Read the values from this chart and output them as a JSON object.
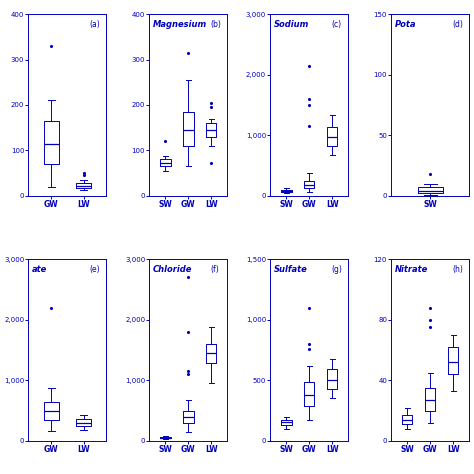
{
  "color": "#0000BB",
  "bgcolor": "#FFFFFF",
  "subplots": [
    {
      "label": "(a)",
      "title": "",
      "ylim": [
        0,
        400
      ],
      "yticks": [
        0,
        100,
        200,
        300,
        400
      ],
      "yticklabels": [
        "0",
        "100",
        "200",
        "300",
        "400"
      ],
      "categories": [
        "GW",
        "LW"
      ],
      "boxes": [
        {
          "med": 115,
          "q1": 70,
          "q3": 165,
          "whislo": 20,
          "whishi": 210,
          "fliers": [
            330
          ]
        },
        {
          "med": 22,
          "q1": 17,
          "q3": 28,
          "whislo": 13,
          "whishi": 35,
          "fliers": [
            45,
            50
          ]
        }
      ],
      "panel": "a",
      "partial_left": true
    },
    {
      "label": "(b)",
      "title": "Magnesium",
      "ylim": [
        0,
        400
      ],
      "yticks": [
        0,
        100,
        200,
        300,
        400
      ],
      "yticklabels": [
        "0",
        "100",
        "200",
        "300",
        "400"
      ],
      "categories": [
        "SW",
        "GW",
        "LW"
      ],
      "boxes": [
        {
          "med": 72,
          "q1": 65,
          "q3": 80,
          "whislo": 55,
          "whishi": 88,
          "fliers": [
            120
          ]
        },
        {
          "med": 145,
          "q1": 110,
          "q3": 185,
          "whislo": 65,
          "whishi": 255,
          "fliers": [
            315
          ]
        },
        {
          "med": 145,
          "q1": 130,
          "q3": 160,
          "whislo": 110,
          "whishi": 170,
          "fliers": [
            195,
            205,
            72
          ]
        }
      ],
      "panel": "b"
    },
    {
      "label": "(c)",
      "title": "Sodium",
      "ylim": [
        0,
        3000
      ],
      "yticks": [
        0,
        1000,
        2000,
        3000
      ],
      "yticklabels": [
        "0",
        "1,000",
        "2,000",
        "3,000"
      ],
      "categories": [
        "SW",
        "GW",
        "LW"
      ],
      "boxes": [
        {
          "med": 80,
          "q1": 60,
          "q3": 100,
          "whislo": 40,
          "whishi": 130,
          "fliers": []
        },
        {
          "med": 185,
          "q1": 120,
          "q3": 250,
          "whislo": 60,
          "whishi": 375,
          "fliers": [
            1150,
            1500,
            1600,
            2150
          ]
        },
        {
          "med": 970,
          "q1": 830,
          "q3": 1130,
          "whislo": 680,
          "whishi": 1340,
          "fliers": []
        }
      ],
      "panel": "c"
    },
    {
      "label": "(d)",
      "title": "Pota",
      "ylim": [
        0,
        150
      ],
      "yticks": [
        0,
        50,
        100,
        150
      ],
      "yticklabels": [
        "0",
        "50",
        "100",
        "150"
      ],
      "categories": [
        "SW"
      ],
      "boxes": [
        {
          "med": 4,
          "q1": 2,
          "q3": 7,
          "whislo": 1,
          "whishi": 10,
          "fliers": [
            18
          ]
        }
      ],
      "panel": "d",
      "partial_right": true
    },
    {
      "label": "(e)",
      "title": "ate",
      "ylim": [
        0,
        3000
      ],
      "yticks": [
        0,
        1000,
        2000,
        3000
      ],
      "yticklabels": [
        "0",
        "1,000",
        "2,000",
        "3,000"
      ],
      "categories": [
        "GW",
        "LW"
      ],
      "boxes": [
        {
          "med": 490,
          "q1": 350,
          "q3": 640,
          "whislo": 170,
          "whishi": 870,
          "fliers": [
            2200
          ]
        },
        {
          "med": 300,
          "q1": 250,
          "q3": 365,
          "whislo": 185,
          "whishi": 430,
          "fliers": []
        }
      ],
      "panel": "e",
      "partial_left": true
    },
    {
      "label": "(f)",
      "title": "Chloride",
      "ylim": [
        0,
        3000
      ],
      "yticks": [
        0,
        1000,
        2000,
        3000
      ],
      "yticklabels": [
        "0",
        "1,000",
        "2,000",
        "3,000"
      ],
      "categories": [
        "SW",
        "GW",
        "LW"
      ],
      "boxes": [
        {
          "med": 50,
          "q1": 40,
          "q3": 60,
          "whislo": 30,
          "whishi": 75,
          "fliers": []
        },
        {
          "med": 400,
          "q1": 290,
          "q3": 490,
          "whislo": 150,
          "whishi": 680,
          "fliers": [
            1100,
            1150,
            1800,
            2700
          ]
        },
        {
          "med": 1450,
          "q1": 1290,
          "q3": 1600,
          "whislo": 950,
          "whishi": 1880,
          "fliers": []
        }
      ],
      "panel": "f"
    },
    {
      "label": "(g)",
      "title": "Sulfate",
      "ylim": [
        0,
        1500
      ],
      "yticks": [
        0,
        500,
        1000,
        1500
      ],
      "yticklabels": [
        "0",
        "500",
        "1,000",
        "1,500"
      ],
      "categories": [
        "SW",
        "GW",
        "LW"
      ],
      "boxes": [
        {
          "med": 155,
          "q1": 130,
          "q3": 175,
          "whislo": 100,
          "whishi": 200,
          "fliers": []
        },
        {
          "med": 380,
          "q1": 290,
          "q3": 490,
          "whislo": 170,
          "whishi": 620,
          "fliers": [
            1100,
            800,
            760
          ]
        },
        {
          "med": 500,
          "q1": 430,
          "q3": 590,
          "whislo": 350,
          "whishi": 680,
          "fliers": []
        }
      ],
      "panel": "g"
    },
    {
      "label": "(h)",
      "title": "Nitrate",
      "ylim": [
        0,
        120
      ],
      "yticks": [
        0,
        40,
        80,
        120
      ],
      "yticklabels": [
        "0",
        "40",
        "80",
        "120"
      ],
      "categories": [
        "SW",
        "GW",
        "LW"
      ],
      "boxes": [
        {
          "med": 14,
          "q1": 11,
          "q3": 17,
          "whislo": 8,
          "whishi": 22,
          "fliers": []
        },
        {
          "med": 27,
          "q1": 20,
          "q3": 35,
          "whislo": 12,
          "whishi": 45,
          "fliers": [
            88,
            80,
            75
          ]
        },
        {
          "med": 52,
          "q1": 44,
          "q3": 62,
          "whislo": 33,
          "whishi": 70,
          "fliers": []
        }
      ],
      "panel": "h"
    }
  ],
  "figsize": [
    4.74,
    4.74
  ],
  "dpi": 100,
  "title_fontsize": 6.0,
  "label_fontsize": 5.5,
  "tick_fontsize": 5.0
}
